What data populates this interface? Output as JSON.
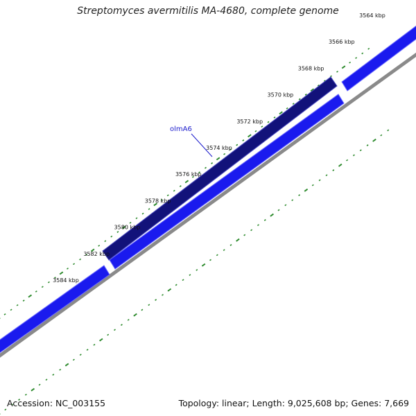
{
  "title": "Streptomyces avermitilis MA-4680, complete genome",
  "footer": {
    "accession": "Accession: NC_003155",
    "summary": "Topology: linear; Length: 9,025,608 bp; Genes: 7,669"
  },
  "colors": {
    "forward_gene": "#1a1aee",
    "reverse_gene": "#12127a",
    "tick": "#2e8b2e",
    "backbone": "#8a8a8a",
    "label": "#1a1acc"
  },
  "ruler": {
    "unit": "kbp",
    "labels": [
      "3564 kbp",
      "3566 kbp",
      "3568 kbp",
      "3570 kbp",
      "3572 kbp",
      "3574 kbp",
      "3576 kbp",
      "3578 kbp",
      "3580 kbp",
      "3582 kbp",
      "3584 kbp"
    ],
    "start_kbp": 3564,
    "end_kbp": 3584,
    "step_kbp": 2
  },
  "genes": [
    {
      "name": "olmA6",
      "strand": "reverse",
      "labeled": true
    }
  ]
}
